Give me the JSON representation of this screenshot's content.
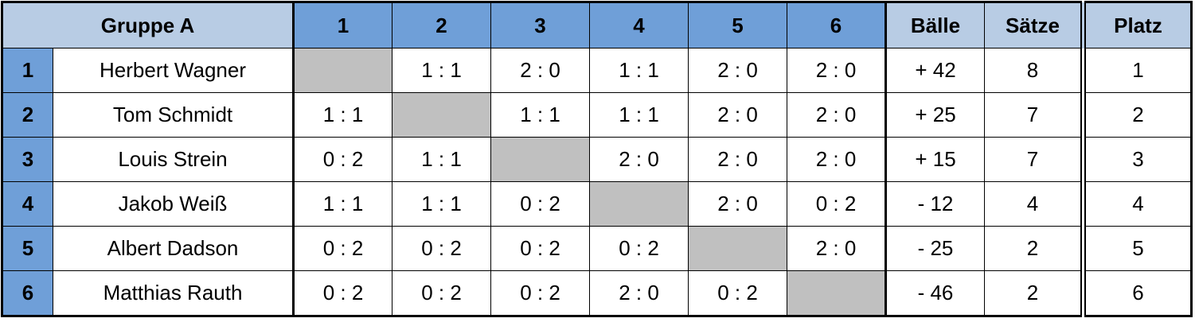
{
  "header": {
    "title": "Gruppe A",
    "columns": [
      "1",
      "2",
      "3",
      "4",
      "5",
      "6",
      "Bälle",
      "Sätze",
      "Platz"
    ]
  },
  "rows": [
    {
      "num": "1",
      "name": "Herbert Wagner",
      "results": [
        null,
        "1 : 1",
        "2 : 0",
        "1 : 1",
        "2 : 0",
        "2 : 0"
      ],
      "balls": "+ 42",
      "sets": "8",
      "rank": "1"
    },
    {
      "num": "2",
      "name": "Tom Schmidt",
      "results": [
        "1 : 1",
        null,
        "1 : 1",
        "1 : 1",
        "2 : 0",
        "2 : 0"
      ],
      "balls": "+ 25",
      "sets": "7",
      "rank": "2"
    },
    {
      "num": "3",
      "name": "Louis Strein",
      "results": [
        "0 : 2",
        "1 : 1",
        null,
        "2 : 0",
        "2 : 0",
        "2 : 0"
      ],
      "balls": "+ 15",
      "sets": "7",
      "rank": "3"
    },
    {
      "num": "4",
      "name": "Jakob Weiß",
      "results": [
        "1 : 1",
        "1 : 1",
        "0 : 2",
        null,
        "2 : 0",
        "0 : 2"
      ],
      "balls": "- 12",
      "sets": "4",
      "rank": "4"
    },
    {
      "num": "5",
      "name": "Albert Dadson",
      "results": [
        "0 : 2",
        "0 : 2",
        "0 : 2",
        "0 : 2",
        null,
        "2 : 0"
      ],
      "balls": "- 25",
      "sets": "2",
      "rank": "5"
    },
    {
      "num": "6",
      "name": "Matthias Rauth",
      "results": [
        "0 : 2",
        "0 : 2",
        "0 : 2",
        "2 : 0",
        "0 : 2",
        null
      ],
      "balls": "- 46",
      "sets": "2",
      "rank": "6"
    }
  ]
}
